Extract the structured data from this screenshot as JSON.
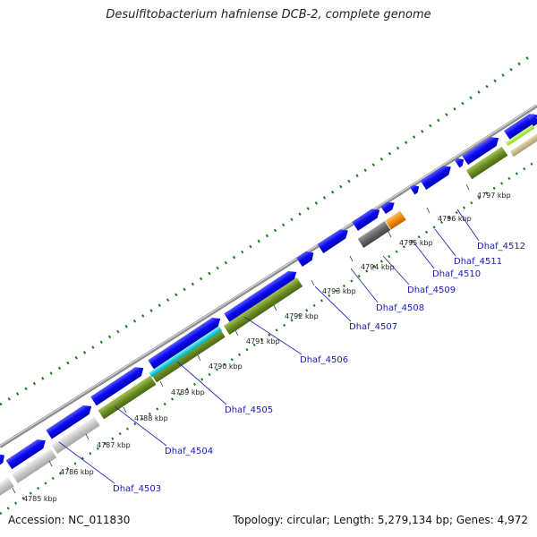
{
  "title": "Desulfitobacterium hafniense DCB-2, complete genome",
  "footer": {
    "accession": "Accession: NC_011830",
    "summary": "Topology: circular; Length: 5,279,134 bp; Genes: 4,972"
  },
  "colors": {
    "background": "#ffffff",
    "backbone": "#8c8c8c",
    "forward_cds": "#0a0af2",
    "reverse_gene_olive": "#6b8e23",
    "reverse_gene_grey": "#c8c8c8",
    "cyan_gene": "#1fd0d8",
    "orange_gene": "#f28a0a",
    "dark_grey_gene": "#666666",
    "light_green_gene": "#9aea2a",
    "tan_gene": "#c8b98a",
    "gc_dots": "#1a7a1a",
    "label_text": "#1a1ab8",
    "leader_line": "#2a2ab8"
  },
  "kbp_ticks": [
    "4785 kbp",
    "4786 kbp",
    "4787 kbp",
    "4788 kbp",
    "4789 kbp",
    "4790 kbp",
    "4791 kbp",
    "4792 kbp",
    "4793 kbp",
    "4794 kbp",
    "4795 kbp",
    "4796 kbp",
    "4797 kbp"
  ],
  "gene_labels": [
    "Dhaf_4503",
    "Dhaf_4504",
    "Dhaf_4505",
    "Dhaf_4506",
    "Dhaf_4507",
    "Dhaf_4508",
    "Dhaf_4509",
    "Dhaf_4510",
    "Dhaf_4511",
    "Dhaf_4512"
  ]
}
